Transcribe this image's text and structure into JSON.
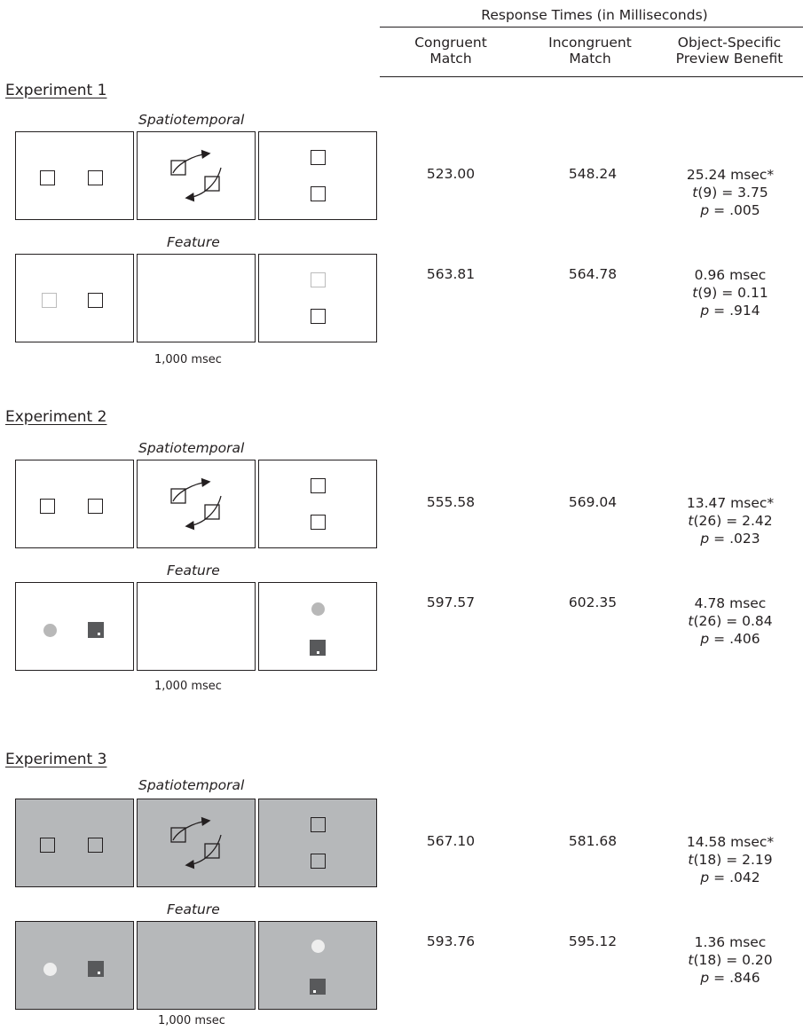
{
  "header": {
    "title": "Response Times (in Milliseconds)",
    "columns": [
      {
        "line1": "Congruent",
        "line2": "Match"
      },
      {
        "line1": "Incongruent",
        "line2": "Match"
      },
      {
        "line1": "Object-Specific",
        "line2": "Preview Benefit"
      }
    ]
  },
  "colors": {
    "ink": "#231f20",
    "panel_gray": "#b6b8ba",
    "dark_square": "#58595b",
    "light_gray": "#bcbcbc"
  },
  "experiments": [
    {
      "title": "Experiment 1",
      "duration": "1,000 msec",
      "conditions": [
        {
          "label": "Spatiotemporal",
          "congruent": "523.00",
          "incongruent": "548.24",
          "benefit": "25.24 msec*",
          "t_var": "t",
          "t_stat": "(9) = 3.75",
          "p_var": "p",
          "p_stat": " = .005"
        },
        {
          "label": "Feature",
          "congruent": "563.81",
          "incongruent": "564.78",
          "benefit": "0.96 msec",
          "t_var": "t",
          "t_stat": "(9) = 0.11",
          "p_var": "p",
          "p_stat": " = .914"
        }
      ]
    },
    {
      "title": "Experiment 2",
      "duration": "1,000 msec",
      "conditions": [
        {
          "label": "Spatiotemporal",
          "congruent": "555.58",
          "incongruent": "569.04",
          "benefit": "13.47 msec*",
          "t_var": "t",
          "t_stat": "(26) = 2.42",
          "p_var": "p",
          "p_stat": " = .023"
        },
        {
          "label": "Feature",
          "congruent": "597.57",
          "incongruent": "602.35",
          "benefit": "4.78 msec",
          "t_var": "t",
          "t_stat": "(26) = 0.84",
          "p_var": "p",
          "p_stat": " = .406"
        }
      ]
    },
    {
      "title": "Experiment 3",
      "duration": "1,000 msec",
      "conditions": [
        {
          "label": "Spatiotemporal",
          "congruent": "567.10",
          "incongruent": "581.68",
          "benefit": "14.58 msec*",
          "t_var": "t",
          "t_stat": "(18) = 2.19",
          "p_var": "p",
          "p_stat": " = .042"
        },
        {
          "label": "Feature",
          "congruent": "593.76",
          "incongruent": "595.12",
          "benefit": "1.36 msec",
          "t_var": "t",
          "t_stat": "(18) = 0.20",
          "p_var": "p",
          "p_stat": " = .846"
        }
      ]
    }
  ]
}
